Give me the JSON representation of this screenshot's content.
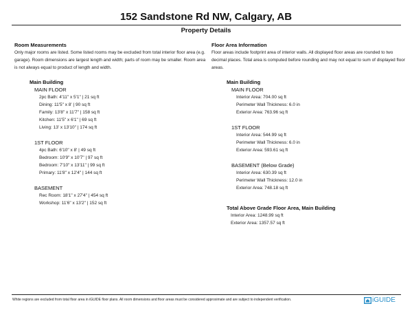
{
  "title": "152 Sandstone Rd NW, Calgary, AB",
  "subtitle": "Property Details",
  "rooms": {
    "heading": "Room Measurements",
    "note": "Only major rooms are listed. Some listed rooms may be excluded from total interior floor area (e.g. garage). Room dimensions are largest length and width; parts of room may be smaller. Room area is not always equal to product of length and width.",
    "building": "Main Building",
    "floors": [
      {
        "name": "MAIN FLOOR",
        "items": [
          "2pc Bath: 4'11\" x 5'1\" | 21 sq ft",
          "Dining: 11'5\" x 8' | 90 sq ft",
          "Family: 13'8\" x 11'7\" | 158 sq ft",
          "Kitchen: 11'5\" x 6'1\" | 69 sq ft",
          "Living: 13' x 13'10\" | 174 sq ft"
        ]
      },
      {
        "name": "1ST FLOOR",
        "items": [
          "4pc Bath: 6'10\" x 8' | 49 sq ft",
          "Bedroom: 10'9\" x 10'7\" | 97 sq ft",
          "Bedroom: 7'10\" x 13'11\" | 99 sq ft",
          "Primary: 11'8\" x 12'4\" | 144 sq ft"
        ]
      },
      {
        "name": "BASEMENT",
        "items": [
          "Rec Room: 18'1\" x 27'4\" | 454 sq ft",
          "Workshop: 11'6\" x 13'2\" | 152 sq ft"
        ]
      }
    ]
  },
  "areas": {
    "heading": "Floor Area Information",
    "note": "Floor areas include footprint area of interior walls. All displayed floor areas are rounded to two decimal places. Total area is computed before rounding and may not equal to sum of displayed floor areas.",
    "building": "Main Building",
    "floors": [
      {
        "name": "MAIN FLOOR",
        "items": [
          "Interior Area: 704.00 sq ft",
          "Perimeter Wall Thickness: 6.0 in",
          "Exterior Area: 763.96 sq ft"
        ]
      },
      {
        "name": "1ST FLOOR",
        "items": [
          "Interior Area: 544.99 sq ft",
          "Perimeter Wall Thickness: 6.0 in",
          "Exterior Area: 593.61 sq ft"
        ]
      },
      {
        "name": "BASEMENT (Below Grade)",
        "items": [
          "Interior Area: 630.39 sq ft",
          "Perimeter Wall Thickness: 12.0 in",
          "Exterior Area: 748.18 sq ft"
        ]
      }
    ],
    "total": {
      "heading": "Total Above Grade Floor Area, Main Building",
      "items": [
        "Interior Area: 1248.99 sq ft",
        "Exterior Area: 1357.57 sq ft"
      ]
    }
  },
  "footer": {
    "disclaimer": "White regions are excluded from total floor area in iGUIDE floor plans. All room dimensions and floor areas must be considered approximate and are subject to independent verification.",
    "logo_text": "iGUIDE",
    "logo_color": "#2a8fc8"
  }
}
